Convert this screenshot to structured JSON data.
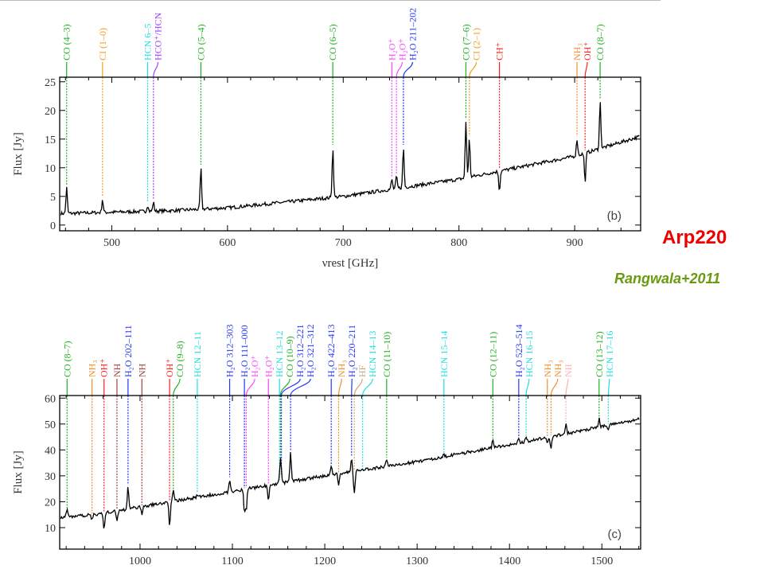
{
  "annotation": {
    "object": "Arp220",
    "reference": "Rangwala+2011"
  },
  "colors": {
    "CO": "#22b022",
    "CI": "#f0a020",
    "HCN": "#22dede",
    "HCO": "#a040ff",
    "H2O+": "#ff44ff",
    "H2O": "#2233ff",
    "CH+": "#ff2020",
    "NH3": "#f09030",
    "OH+": "#ff2020",
    "NH": "#a04040",
    "NII": "#ffb0b0",
    "HF": "#c8a878",
    "spectrum": "#000000"
  },
  "chart_data": [
    {
      "type": "line",
      "panel": "(b)",
      "xlabel": "νrest [GHz]",
      "ylabel": "Flux [Jy]",
      "xlim": [
        455,
        957
      ],
      "ylim": [
        -1,
        25.8
      ],
      "xticks": [
        500,
        600,
        700,
        800,
        900
      ],
      "yticks": [
        0,
        5,
        10,
        15,
        20,
        25
      ],
      "continuum": [
        [
          455,
          2
        ],
        [
          550,
          2.5
        ],
        [
          600,
          3
        ],
        [
          700,
          5
        ],
        [
          800,
          8
        ],
        [
          850,
          10
        ],
        [
          900,
          12
        ],
        [
          957,
          15.5
        ]
      ],
      "lines": [
        {
          "label": "CO (4–3)",
          "species": "CO",
          "freq": 461,
          "peak": 6.5
        },
        {
          "label": "CI (1–0)",
          "species": "CI",
          "freq": 492,
          "peak": 4.5
        },
        {
          "label": "HCN 6–5",
          "species": "HCN",
          "freq": 531,
          "peak": 3.5
        },
        {
          "label": "HCO⁺/HCN",
          "species": "HCO",
          "freq": 536,
          "peak": 4
        },
        {
          "label": "CO (5–4)",
          "species": "CO",
          "freq": 577,
          "peak": 10
        },
        {
          "label": "CO (6–5)",
          "species": "CO",
          "freq": 691,
          "peak": 13.5
        },
        {
          "label": "H₂O⁺",
          "species": "H2O+",
          "freq": 742,
          "peak": 8
        },
        {
          "label": "H₂O⁺",
          "species": "H2O+",
          "freq": 746,
          "peak": 8.5
        },
        {
          "label": "H₂O 211–202",
          "species": "H2O",
          "freq": 752,
          "peak": 13.5
        },
        {
          "label": "CO (7–6)",
          "species": "CO",
          "freq": 806,
          "peak": 18
        },
        {
          "label": "CI (2–1)",
          "species": "CI",
          "freq": 809,
          "peak": 15
        },
        {
          "label": "CH⁺",
          "species": "CH+",
          "freq": 835,
          "peak": 6
        },
        {
          "label": "NH₃",
          "species": "NH3",
          "freq": 902,
          "peak": 15
        },
        {
          "label": "OH⁺",
          "species": "OH+",
          "freq": 909,
          "peak": 7.5
        },
        {
          "label": "CO (8–7)",
          "species": "CO",
          "freq": 922,
          "peak": 21.5
        }
      ]
    },
    {
      "type": "line",
      "panel": "(c)",
      "xlabel": "",
      "ylabel": "Flux [Jy]",
      "xlim": [
        913,
        1542
      ],
      "ylim": [
        1.7,
        61
      ],
      "xticks": [
        1000,
        1100,
        1200,
        1300,
        1400,
        1500
      ],
      "yticks": [
        10,
        20,
        30,
        40,
        50,
        60
      ],
      "continuum": [
        [
          913,
          14
        ],
        [
          950,
          15
        ],
        [
          1000,
          18
        ],
        [
          1100,
          24
        ],
        [
          1200,
          30
        ],
        [
          1300,
          35.5
        ],
        [
          1400,
          42
        ],
        [
          1500,
          49
        ],
        [
          1542,
          52
        ]
      ],
      "lines": [
        {
          "label": "CO (8–7)",
          "species": "CO",
          "freq": 921,
          "peak": 17
        },
        {
          "label": "NH₃",
          "species": "NH3",
          "freq": 948,
          "peak": 13
        },
        {
          "label": "OH⁺",
          "species": "OH+",
          "freq": 961,
          "peak": 9
        },
        {
          "label": "NH",
          "species": "NH",
          "freq": 975,
          "peak": 12
        },
        {
          "label": "H₂O 202–111",
          "species": "H2O",
          "freq": 987,
          "peak": 26
        },
        {
          "label": "NH",
          "species": "NH",
          "freq": 1002,
          "peak": 15
        },
        {
          "label": "OH⁺",
          "species": "OH+",
          "freq": 1032,
          "peak": 11
        },
        {
          "label": "CO (9–8)",
          "species": "CO",
          "freq": 1036,
          "peak": 24
        },
        {
          "label": "HCN 12–11",
          "species": "HCN",
          "freq": 1062,
          "peak": 23
        },
        {
          "label": "H₂O 312–303",
          "species": "H2O",
          "freq": 1097,
          "peak": 29
        },
        {
          "label": "H₂O 111–000",
          "species": "H2O",
          "freq": 1113,
          "peak": 16
        },
        {
          "label": "H₂O⁺",
          "species": "H2O+",
          "freq": 1115,
          "peak": 17
        },
        {
          "label": "H₂O⁺",
          "species": "H2O+",
          "freq": 1139,
          "peak": 21
        },
        {
          "label": "HCN 13–12",
          "species": "HCN",
          "freq": 1151,
          "peak": 28
        },
        {
          "label": "CO (10–9)",
          "species": "CO",
          "freq": 1152,
          "peak": 35
        },
        {
          "label": "H₂O 312–221",
          "species": "H2O",
          "freq": 1153,
          "peak": 30
        },
        {
          "label": "H₂O 321–312",
          "species": "H2O",
          "freq": 1163,
          "peak": 39
        },
        {
          "label": "H₂O 422–413",
          "species": "H2O",
          "freq": 1207,
          "peak": 34
        },
        {
          "label": "NH₃",
          "species": "NH3",
          "freq": 1215,
          "peak": 26
        },
        {
          "label": "H₂O 220–211",
          "species": "H2O",
          "freq": 1229,
          "peak": 37
        },
        {
          "label": "HF",
          "species": "HF",
          "freq": 1232,
          "peak": 23
        },
        {
          "label": "HCN 14–13",
          "species": "HCN",
          "freq": 1241,
          "peak": 32
        },
        {
          "label": "CO (11–10)",
          "species": "CO",
          "freq": 1267,
          "peak": 36.5
        },
        {
          "label": "HCN 15–14",
          "species": "HCN",
          "freq": 1329,
          "peak": 38
        },
        {
          "label": "CO (12–11)",
          "species": "CO",
          "freq": 1382,
          "peak": 44
        },
        {
          "label": "H₂O 523–514",
          "species": "H2O",
          "freq": 1410,
          "peak": 44
        },
        {
          "label": "HCN 16–15",
          "species": "HCN",
          "freq": 1418,
          "peak": 45
        },
        {
          "label": "NH₃",
          "species": "NH3",
          "freq": 1441,
          "peak": 42
        },
        {
          "label": "NH₃",
          "species": "NH3",
          "freq": 1445,
          "peak": 40
        },
        {
          "label": "NII",
          "species": "NII",
          "freq": 1461,
          "peak": 50
        },
        {
          "label": "CO (13–12)",
          "species": "CO",
          "freq": 1497,
          "peak": 52
        },
        {
          "label": "HCN 17–16",
          "species": "HCN",
          "freq": 1507,
          "peak": 48
        }
      ]
    }
  ]
}
